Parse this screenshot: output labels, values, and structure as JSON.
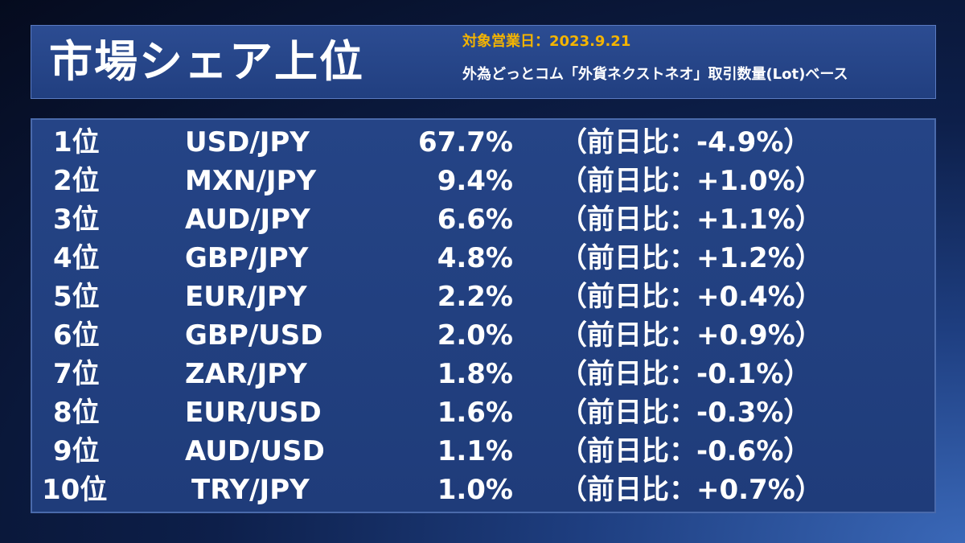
{
  "header": {
    "title": "市場シェア上位",
    "date": "対象営業日：2023.9.21",
    "subtitle": "外為どっとコム「外貨ネクストネオ」取引数量(Lot)ベース"
  },
  "rows": [
    {
      "rank": "1位",
      "pair": "USD/JPY",
      "share": "67.7%",
      "change": "（前日比：-4.9%）"
    },
    {
      "rank": "2位",
      "pair": "MXN/JPY",
      "share": "9.4%",
      "change": "（前日比：+1.0%）"
    },
    {
      "rank": "3位",
      "pair": "AUD/JPY",
      "share": "6.6%",
      "change": "（前日比：+1.1%）"
    },
    {
      "rank": "4位",
      "pair": "GBP/JPY",
      "share": "4.8%",
      "change": "（前日比：+1.2%）"
    },
    {
      "rank": "5位",
      "pair": "EUR/JPY",
      "share": "2.2%",
      "change": "（前日比：+0.4%）"
    },
    {
      "rank": "6位",
      "pair": "GBP/USD",
      "share": "2.0%",
      "change": "（前日比：+0.9%）"
    },
    {
      "rank": "7位",
      "pair": "ZAR/JPY",
      "share": "1.8%",
      "change": "（前日比：-0.1%）"
    },
    {
      "rank": "8位",
      "pair": "EUR/USD",
      "share": "1.6%",
      "change": "（前日比：-0.3%）"
    },
    {
      "rank": "9位",
      "pair": "AUD/USD",
      "share": "1.1%",
      "change": "（前日比：-0.6%）"
    },
    {
      "rank": "10位",
      "pair": "TRY/JPY",
      "share": "1.0%",
      "change": "（前日比：+0.7%）"
    }
  ],
  "colors": {
    "date_accent": "#f4b400",
    "panel": "#213f80",
    "text": "#ffffff"
  }
}
